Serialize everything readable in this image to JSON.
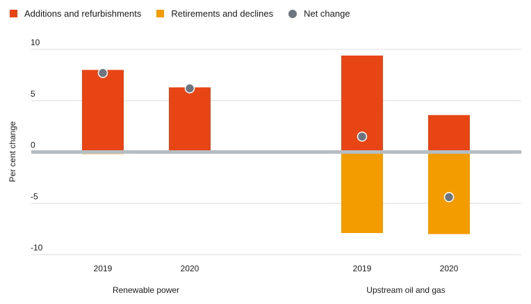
{
  "chart_data": {
    "type": "bar",
    "ylabel": "Per cent change",
    "ylim": [
      -10,
      10
    ],
    "yticks": [
      10,
      5,
      0,
      -5,
      -10
    ],
    "groups": [
      {
        "name": "Renewable power",
        "categories": [
          "2019",
          "2020"
        ]
      },
      {
        "name": "Upstream oil and gas",
        "categories": [
          "2019",
          "2020"
        ]
      }
    ],
    "series": [
      {
        "name": "Additions and refurbishments",
        "kind": "bar",
        "color": "#e84515",
        "values": [
          8.0,
          6.3,
          9.4,
          3.6
        ]
      },
      {
        "name": "Retirements and declines",
        "kind": "bar",
        "color": "#f39c00",
        "values": [
          -0.2,
          -0.1,
          -7.9,
          -8.0
        ]
      },
      {
        "name": "Net change",
        "kind": "point",
        "color": "#6c7580",
        "values": [
          7.7,
          6.2,
          1.5,
          -4.4
        ]
      }
    ],
    "grid": true,
    "legend": "top-left"
  }
}
